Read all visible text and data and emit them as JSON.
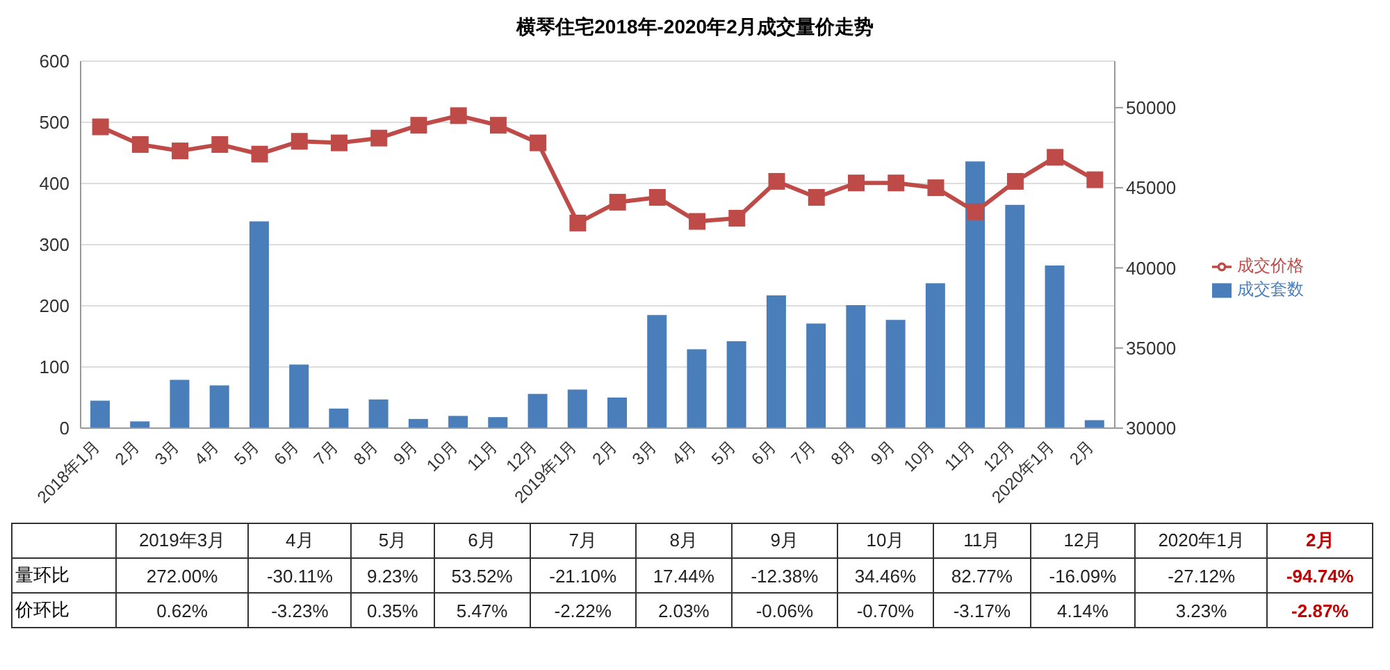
{
  "chart_data": [
    {
      "type": "bar",
      "title": "横琴住宅2018年-2020年2月成交量价走势",
      "categories": [
        "2018年1月",
        "2月",
        "3月",
        "4月",
        "5月",
        "6月",
        "7月",
        "8月",
        "9月",
        "10月",
        "11月",
        "12月",
        "2019年1月",
        "2月",
        "3月",
        "4月",
        "5月",
        "6月",
        "7月",
        "8月",
        "9月",
        "10月",
        "11月",
        "12月",
        "2020年1月",
        "2月"
      ],
      "series": [
        {
          "name": "成交套数",
          "type": "bar",
          "color": "#4a7ebb",
          "values": [
            45,
            11,
            79,
            70,
            338,
            104,
            32,
            47,
            15,
            20,
            18,
            56,
            63,
            50,
            185,
            129,
            142,
            217,
            171,
            201,
            177,
            237,
            436,
            365,
            266,
            13
          ]
        },
        {
          "name": "成交价格",
          "type": "line",
          "axis": "y2",
          "color": "#be4b48",
          "marker": "square",
          "line_style": "solid",
          "values": [
            48800,
            47700,
            47300,
            47700,
            47100,
            47900,
            47800,
            48100,
            48900,
            49500,
            48900,
            47800,
            42800,
            44100,
            44400,
            42900,
            43100,
            45400,
            44400,
            45300,
            45300,
            45000,
            43500,
            45400,
            46900,
            45500
          ]
        }
      ],
      "ylim": [
        0,
        600
      ],
      "yticks": [
        0,
        100,
        200,
        300,
        400,
        500,
        600
      ],
      "y2lim": [
        30000,
        52900
      ],
      "y2ticks": [
        30000,
        35000,
        40000,
        45000,
        50000
      ],
      "grid": "y",
      "legend": "right"
    },
    {
      "type": "heatmap",
      "categories": [
        "2019年3月",
        "4月",
        "5月",
        "6月",
        "7月",
        "8月",
        "9月",
        "10月",
        "11月",
        "12月",
        "2020年1月",
        "2月"
      ],
      "colors": [
        "#222222",
        "#222222",
        "#222222",
        "#222222",
        "#222222",
        "#222222",
        "#222222",
        "#222222",
        "#222222",
        "#222222",
        "#222222",
        "#c00000"
      ],
      "y_categories": [
        "量环比",
        "价环比"
      ],
      "cells": [
        [
          "272.00%",
          "-30.11%",
          "9.23%",
          "53.52%",
          "-21.10%",
          "17.44%",
          "-12.38%",
          "34.46%",
          "82.77%",
          "-16.09%",
          "-27.12%",
          "-94.74%"
        ],
        [
          "0.62%",
          "-3.23%",
          "0.35%",
          "5.47%",
          "-2.22%",
          "2.03%",
          "-0.06%",
          "-0.70%",
          "-3.17%",
          "4.14%",
          "3.23%",
          "-2.87%"
        ]
      ]
    }
  ]
}
